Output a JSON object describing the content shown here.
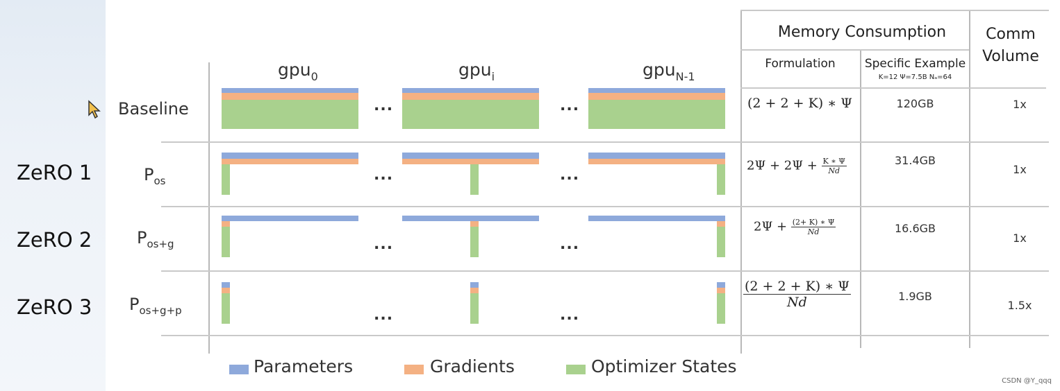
{
  "zero_labels": [
    "ZeRO 1",
    "ZeRO 2",
    "ZeRO 3"
  ],
  "row_labels": {
    "baseline": "Baseline",
    "p": "P",
    "os": "os",
    "osg": "os+g",
    "osgp": "os+g+p"
  },
  "gpu_headers": {
    "base": "gpu",
    "sub0": "0",
    "subi": "i",
    "subn": "N-1"
  },
  "dots": "...",
  "table_headers": {
    "memory": "Memory Consumption",
    "comm_line1": "Comm",
    "comm_line2": "Volume",
    "formulation": "Formulation",
    "specific_example": "Specific Example",
    "example_params": "K=12 Ψ=7.5B Nₐ=64"
  },
  "formulas": {
    "baseline": "(2 + 2 + K) ∗ Ψ",
    "zero1_prefix": "2Ψ + 2Ψ + ",
    "zero1_num": "K ∗ Ψ",
    "zero1_den": "Nd",
    "zero2_prefix": "2Ψ + ",
    "zero2_num": "(2+ K) ∗ Ψ",
    "zero2_den": "Nd",
    "zero3_num": "(2 + 2 + K) ∗ Ψ",
    "zero3_den": "Nd"
  },
  "examples": [
    "120GB",
    "31.4GB",
    "16.6GB",
    "1.9GB"
  ],
  "comm_volumes": [
    "1x",
    "1x",
    "1x",
    "1.5x"
  ],
  "legend": [
    "Parameters",
    "Gradients",
    "Optimizer States"
  ],
  "colors": {
    "parameters": "#8ea9db",
    "gradients": "#f4b183",
    "optimizer_states": "#a9d18e"
  },
  "watermark": "CSDN @Y_qqq"
}
